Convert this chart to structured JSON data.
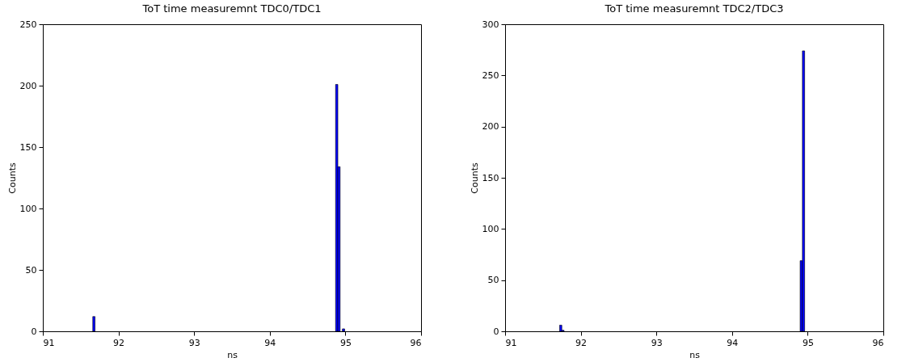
{
  "chart_data": [
    {
      "type": "histogram",
      "title": "ToT time measuremnt TDC0/TDC1",
      "xlabel": "ns",
      "ylabel": "Counts",
      "color": "#0000ff",
      "bins": [
        91.66,
        91.69,
        91.72,
        91.75,
        91.78,
        91.81,
        91.84,
        91.87,
        91.9,
        91.93,
        91.96,
        91.99,
        92.02,
        92.05,
        92.08,
        92.11,
        92.14,
        92.17,
        92.2,
        92.23,
        92.26,
        92.29,
        92.32,
        92.35,
        92.38,
        92.41,
        92.44,
        92.47,
        92.5,
        92.53,
        92.56,
        92.59,
        92.62,
        92.65,
        92.68,
        92.71,
        92.74,
        92.77,
        92.8,
        92.83,
        92.86,
        92.89,
        92.92,
        92.95,
        92.98,
        93.01,
        93.04,
        93.07,
        93.1,
        93.13,
        93.16,
        93.19,
        93.22,
        93.25,
        93.28,
        93.31,
        93.34,
        93.37,
        93.4,
        93.43,
        93.46,
        93.49,
        93.52,
        93.55,
        93.58,
        93.61,
        93.64,
        93.67,
        93.7,
        93.73,
        93.76,
        93.79,
        93.82,
        93.85,
        93.88,
        93.91,
        93.94,
        93.97,
        94.0,
        94.03,
        94.06,
        94.09,
        94.12,
        94.15,
        94.18,
        94.21,
        94.24,
        94.27,
        94.3,
        94.33,
        94.36,
        94.39,
        94.42,
        94.45,
        94.48,
        94.51,
        94.54,
        94.57,
        94.6,
        94.63,
        94.66,
        94.69,
        94.72,
        94.75,
        94.78,
        94.81,
        94.84,
        94.87,
        94.9,
        94.93,
        94.96,
        94.99
      ],
      "values": [
        12,
        0,
        0,
        0,
        0,
        0,
        0,
        0,
        0,
        0,
        0,
        0,
        0,
        0,
        0,
        0,
        0,
        0,
        0,
        0,
        0,
        0,
        0,
        0,
        0,
        0,
        0,
        0,
        0,
        0,
        0,
        0,
        0,
        0,
        0,
        0,
        0,
        0,
        0,
        0,
        0,
        0,
        0,
        0,
        0,
        0,
        0,
        0,
        0,
        0,
        0,
        0,
        0,
        0,
        0,
        0,
        0,
        0,
        0,
        0,
        0,
        0,
        0,
        0,
        0,
        0,
        0,
        0,
        0,
        0,
        0,
        0,
        0,
        0,
        0,
        0,
        0,
        0,
        0,
        0,
        0,
        0,
        0,
        0,
        0,
        0,
        0,
        0,
        0,
        0,
        0,
        0,
        0,
        0,
        0,
        0,
        0,
        0,
        0,
        0,
        0,
        0,
        0,
        0,
        0,
        0,
        0,
        201,
        134,
        0,
        2
      ],
      "xlim": [
        91,
        96
      ],
      "xticks": [
        91,
        92,
        93,
        94,
        95,
        96
      ],
      "ylim": [
        0,
        250
      ],
      "yticks": [
        0,
        50,
        100,
        150,
        200,
        250
      ],
      "grid": false
    },
    {
      "type": "histogram",
      "title": "ToT time measuremnt TDC2/TDC3",
      "xlabel": "ns",
      "ylabel": "Counts",
      "color": "#0000ff",
      "bins": [
        91.72,
        91.75,
        91.78,
        91.81,
        91.84,
        91.87,
        91.9,
        91.93,
        91.96,
        91.99,
        92.02,
        92.05,
        92.08,
        92.11,
        92.14,
        92.17,
        92.2,
        92.23,
        92.26,
        92.29,
        92.32,
        92.35,
        92.38,
        92.41,
        92.44,
        92.47,
        92.5,
        92.53,
        92.56,
        92.59,
        92.62,
        92.65,
        92.68,
        92.71,
        92.74,
        92.77,
        92.8,
        92.83,
        92.86,
        92.89,
        92.92,
        92.95,
        92.98,
        93.01,
        93.04,
        93.07,
        93.1,
        93.13,
        93.16,
        93.19,
        93.22,
        93.25,
        93.28,
        93.31,
        93.34,
        93.37,
        93.4,
        93.43,
        93.46,
        93.49,
        93.52,
        93.55,
        93.58,
        93.61,
        93.64,
        93.67,
        93.7,
        93.73,
        93.76,
        93.79,
        93.82,
        93.85,
        93.88,
        93.91,
        93.94,
        93.97,
        94.0,
        94.03,
        94.06,
        94.09,
        94.12,
        94.15,
        94.18,
        94.21,
        94.24,
        94.27,
        94.3,
        94.33,
        94.36,
        94.39,
        94.42,
        94.45,
        94.48,
        94.51,
        94.54,
        94.57,
        94.6,
        94.63,
        94.66,
        94.69,
        94.72,
        94.75,
        94.78,
        94.81,
        94.84,
        94.87,
        94.9,
        94.93,
        94.96
      ],
      "values": [
        6,
        1,
        0,
        0,
        0,
        0,
        0,
        0,
        0,
        0,
        0,
        0,
        0,
        0,
        0,
        0,
        0,
        0,
        0,
        0,
        0,
        0,
        0,
        0,
        0,
        0,
        0,
        0,
        0,
        0,
        0,
        0,
        0,
        0,
        0,
        0,
        0,
        0,
        0,
        0,
        0,
        0,
        0,
        0,
        0,
        0,
        0,
        0,
        0,
        0,
        0,
        0,
        0,
        0,
        0,
        0,
        0,
        0,
        0,
        0,
        0,
        0,
        0,
        0,
        0,
        0,
        0,
        0,
        0,
        0,
        0,
        0,
        0,
        0,
        0,
        0,
        0,
        0,
        0,
        0,
        0,
        0,
        0,
        0,
        0,
        0,
        0,
        0,
        0,
        0,
        0,
        0,
        0,
        0,
        0,
        0,
        0,
        0,
        0,
        0,
        0,
        0,
        0,
        0,
        0,
        0,
        69,
        274
      ],
      "xlim": [
        91,
        96
      ],
      "xticks": [
        91,
        92,
        93,
        94,
        95,
        96
      ],
      "ylim": [
        0,
        300
      ],
      "yticks": [
        0,
        50,
        100,
        150,
        200,
        250,
        300
      ],
      "grid": false
    }
  ]
}
